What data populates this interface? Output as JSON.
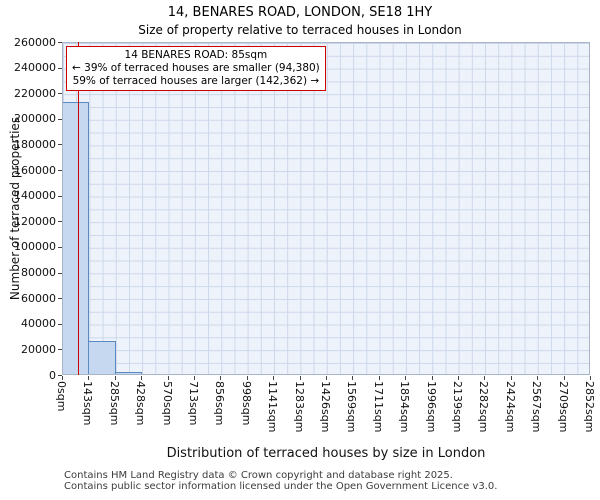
{
  "page": {
    "title": "14, BENARES ROAD, LONDON, SE18 1HY",
    "subtitle": "Size of property relative to terraced houses in London"
  },
  "chart_data": {
    "type": "bar",
    "title": "14, BENARES ROAD, LONDON, SE18 1HY",
    "subtitle": "Size of property relative to terraced houses in London",
    "xlabel": "Distribution of terraced houses by size in London",
    "ylabel": "Number of terraced properties",
    "grid": true,
    "legend": "none",
    "ylim": [
      0,
      260000
    ],
    "y_ticks": [
      0,
      20000,
      40000,
      60000,
      80000,
      100000,
      120000,
      140000,
      160000,
      180000,
      200000,
      220000,
      240000,
      260000
    ],
    "bin_edges_sqm": [
      0,
      143,
      285,
      428,
      570,
      713,
      856,
      998,
      1141,
      1283,
      1426,
      1569,
      1711,
      1854,
      1996,
      2139,
      2282,
      2424,
      2567,
      2709,
      2852
    ],
    "x_tick_labels": [
      "0sqm",
      "143sqm",
      "285sqm",
      "428sqm",
      "570sqm",
      "713sqm",
      "856sqm",
      "998sqm",
      "1141sqm",
      "1283sqm",
      "1426sqm",
      "1569sqm",
      "1711sqm",
      "1854sqm",
      "1996sqm",
      "2139sqm",
      "2282sqm",
      "2424sqm",
      "2567sqm",
      "2709sqm",
      "2852sqm"
    ],
    "values": [
      212000,
      25500,
      1300,
      350,
      150,
      80,
      50,
      30,
      20,
      15,
      10,
      8,
      6,
      5,
      4,
      3,
      3,
      2,
      2,
      1
    ],
    "bar_fill_color": "#c6d7f0",
    "bar_border_color": "#5b8ac2",
    "marker_color": "#cc0000",
    "marker_sqm": 85,
    "annotation": {
      "line1": "14 BENARES ROAD: 85sqm",
      "line2": "← 39% of terraced houses are smaller (94,380)",
      "line3": "59% of terraced houses are larger (142,362) →"
    }
  },
  "footer": {
    "line1": "Contains HM Land Registry data © Crown copyright and database right 2025.",
    "line2": "Contains public sector information licensed under the Open Government Licence v3.0."
  }
}
